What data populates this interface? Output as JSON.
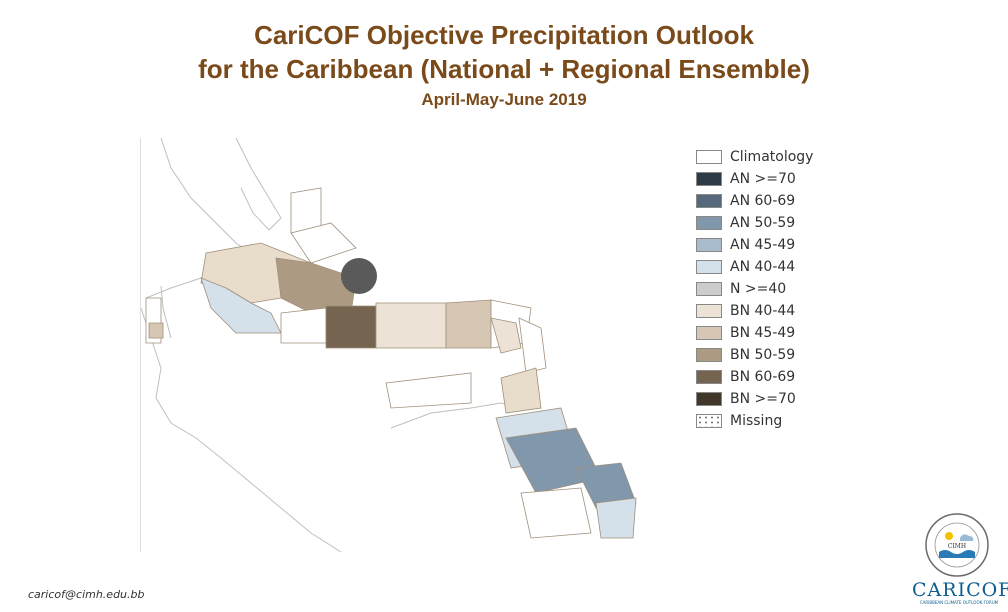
{
  "header": {
    "title_line1": "CariCOF Objective Precipitation Outlook",
    "title_line2": "for the Caribbean (National + Regional Ensemble)",
    "period": "April-May-June 2019"
  },
  "legend": {
    "items": [
      {
        "label": "Climatology",
        "color": "#ffffff"
      },
      {
        "label": "AN  >=70",
        "color": "#2e3a46"
      },
      {
        "label": "AN 60-69",
        "color": "#56697c"
      },
      {
        "label": "AN 50-59",
        "color": "#8197ac"
      },
      {
        "label": "AN 45-49",
        "color": "#a9bccd"
      },
      {
        "label": "AN 40-44",
        "color": "#d4e0ea"
      },
      {
        "label": "N >=40",
        "color": "#cccccc"
      },
      {
        "label": "BN 40-44",
        "color": "#ece3d6"
      },
      {
        "label": "BN 45-49",
        "color": "#d6c7b4"
      },
      {
        "label": "BN 50-59",
        "color": "#ad9a82"
      },
      {
        "label": "BN 60-69",
        "color": "#75644f"
      },
      {
        "label": "BN >=70",
        "color": "#40362a"
      },
      {
        "label": "Missing",
        "color": "dots"
      }
    ]
  },
  "footer": {
    "email": "caricof@cimh.edu.bb"
  },
  "logos": {
    "cimh": "CIMH",
    "caricof": "CARICOF",
    "caricof_sub": "CARIBBEAN CLIMATE OUTLOOK FORUM"
  }
}
